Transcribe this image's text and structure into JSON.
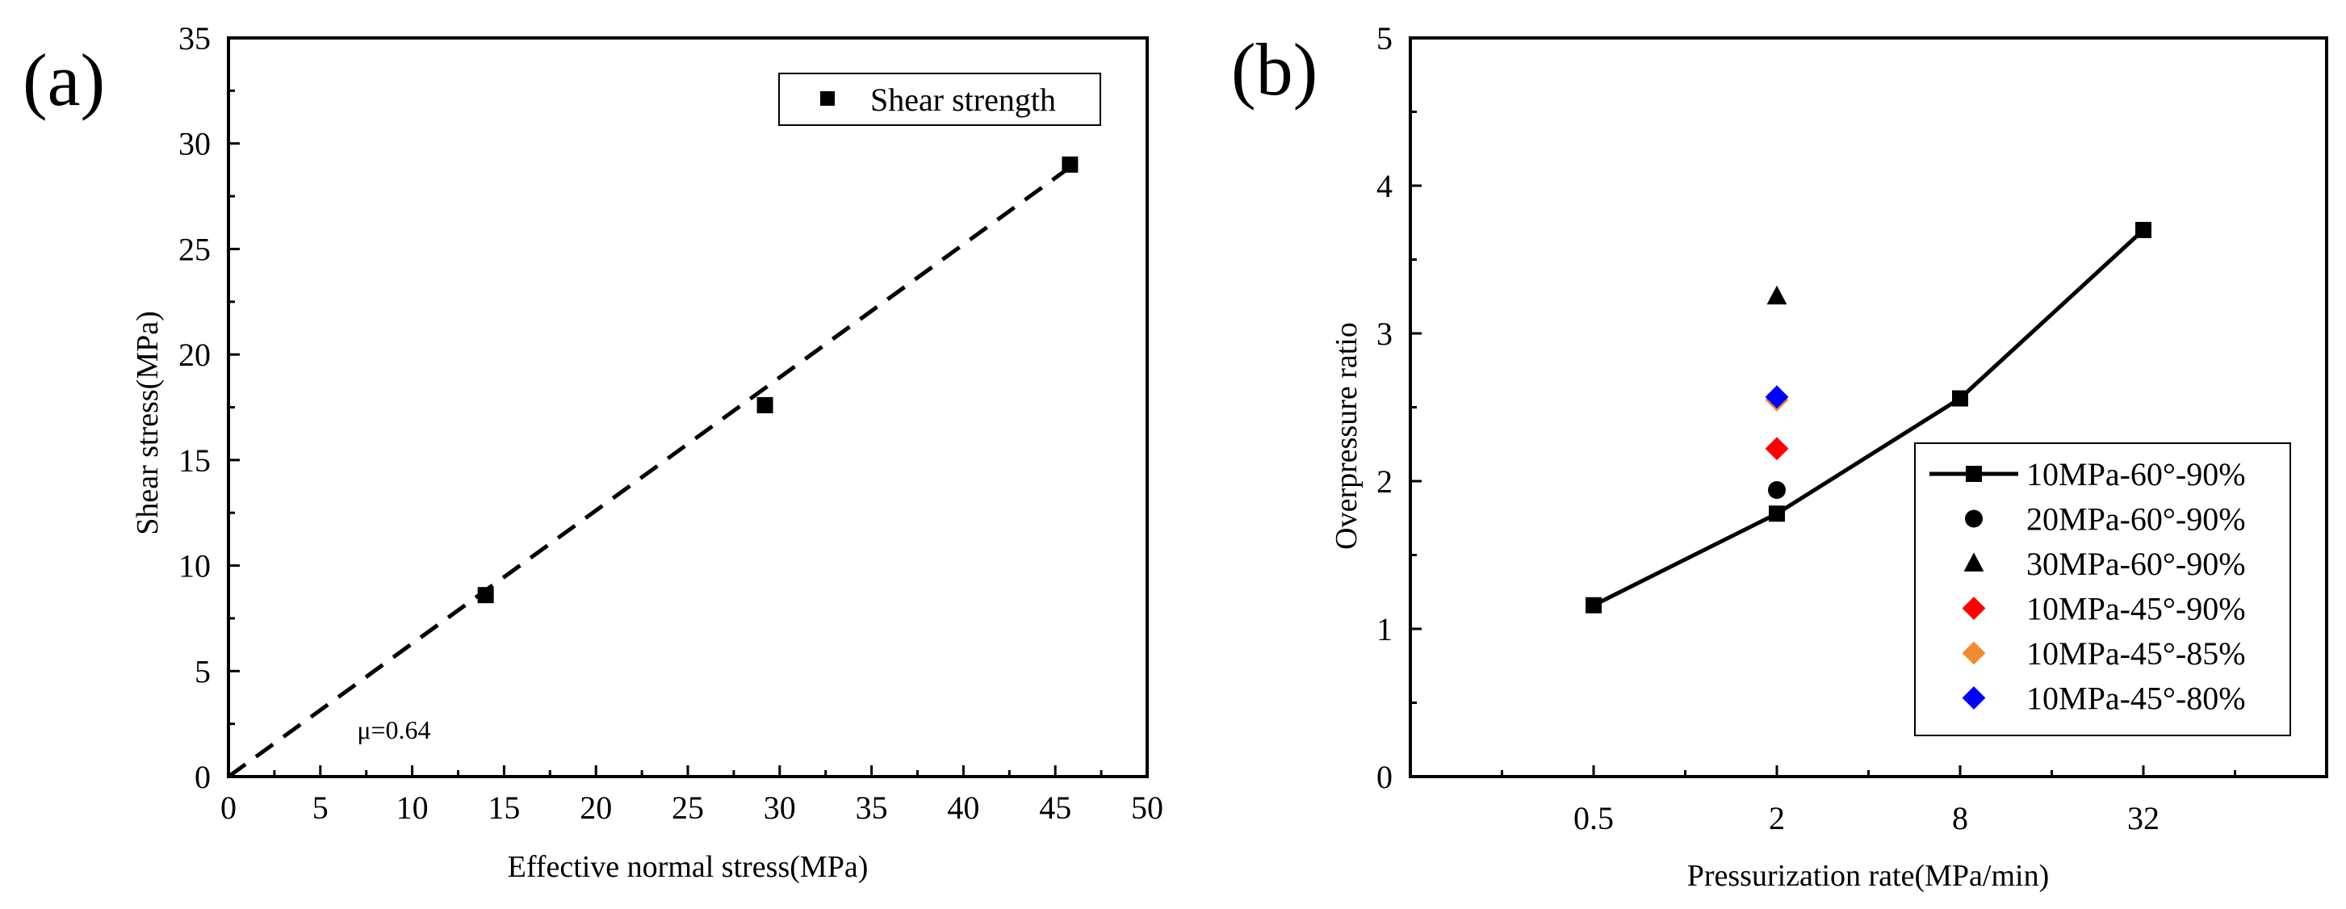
{
  "chart_data": [
    {
      "type": "scatter",
      "panel_label": "(a)",
      "xlabel": "Effective normal stress(MPa)",
      "ylabel": "Shear stress(MPa)",
      "xlim": [
        0,
        50
      ],
      "ylim": [
        0,
        35
      ],
      "xticks": [
        "0",
        "5",
        "10",
        "15",
        "20",
        "25",
        "30",
        "35",
        "40",
        "45",
        "50"
      ],
      "yticks": [
        "0",
        "5",
        "10",
        "15",
        "20",
        "25",
        "30",
        "35"
      ],
      "legend_position": "top-right",
      "series": [
        {
          "name": "Shear strength",
          "marker": "square",
          "color": "#000000",
          "x": [
            14.0,
            29.2,
            45.8
          ],
          "y": [
            8.6,
            17.6,
            29.0
          ]
        }
      ],
      "fit_line": {
        "style": "dashed",
        "color": "#000000",
        "x": [
          0,
          46
        ],
        "y": [
          0,
          29.0
        ]
      },
      "annotation": "μ=0.64",
      "annotation_pos": [
        7,
        1.8
      ]
    },
    {
      "type": "line",
      "panel_label": "(b)",
      "xlabel": "Pressurization rate(MPa/min)",
      "ylabel": "Overpressure ratio",
      "x_scale": "log2",
      "categories": [
        "0.5",
        "2",
        "8",
        "32"
      ],
      "xlim_log2": [
        -3,
        7
      ],
      "ylim": [
        0,
        5
      ],
      "yticks": [
        "0",
        "1",
        "2",
        "3",
        "4",
        "5"
      ],
      "legend_position": "bottom-right",
      "series": [
        {
          "name": "10MPa-60°-90%",
          "marker": "square",
          "color": "#000000",
          "line": true,
          "x": [
            0.5,
            2,
            8,
            32
          ],
          "y": [
            1.16,
            1.78,
            2.56,
            3.7
          ]
        },
        {
          "name": "20MPa-60°-90%",
          "marker": "circle",
          "color": "#000000",
          "line": false,
          "x": [
            2
          ],
          "y": [
            1.94
          ]
        },
        {
          "name": "30MPa-60°-90%",
          "marker": "triangle",
          "color": "#000000",
          "line": false,
          "x": [
            2
          ],
          "y": [
            3.25
          ]
        },
        {
          "name": "10MPa-45°-90%",
          "marker": "diamond",
          "color": "#ff0000",
          "line": false,
          "x": [
            2
          ],
          "y": [
            2.22
          ]
        },
        {
          "name": "10MPa-45°-85%",
          "marker": "diamond",
          "color": "#f28a30",
          "line": false,
          "x": [
            2
          ],
          "y": [
            2.55
          ]
        },
        {
          "name": "10MPa-45°-80%",
          "marker": "diamond",
          "color": "#0000ff",
          "line": false,
          "x": [
            2
          ],
          "y": [
            2.57
          ]
        }
      ]
    }
  ]
}
